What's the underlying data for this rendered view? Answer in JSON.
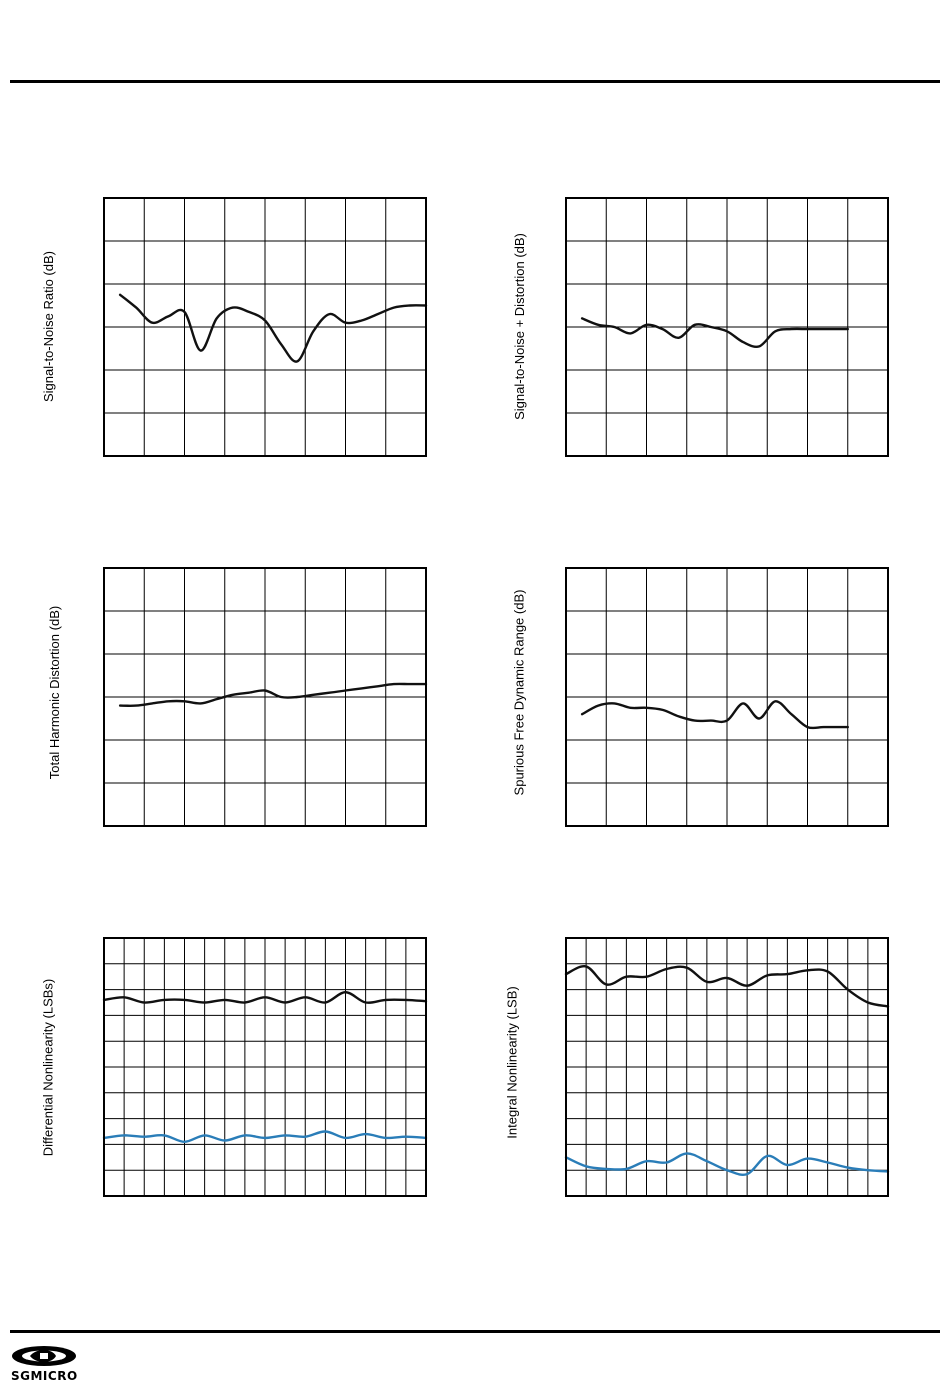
{
  "page": {
    "brand": "SGMICRO"
  },
  "colors": {
    "line": "#111111",
    "series_black": "#111111",
    "series_blue": "#2a7db8",
    "grid": "#000000"
  },
  "chart_data": [
    {
      "id": "snr",
      "type": "line",
      "ylabel": "Signal-to-Noise Ratio (dB)",
      "grid": "on",
      "xlim": [
        0,
        8
      ],
      "ylim": [
        0,
        6
      ],
      "x_divisions": 8,
      "y_divisions": 6,
      "series": [
        {
          "color": "series_black",
          "x": [
            0.4,
            0.8,
            1.2,
            1.6,
            2.0,
            2.4,
            2.8,
            3.2,
            3.6,
            4.0,
            4.4,
            4.8,
            5.2,
            5.6,
            6.0,
            6.4,
            6.8,
            7.2,
            7.6,
            8.0
          ],
          "values": [
            3.75,
            3.45,
            3.1,
            3.25,
            3.35,
            2.45,
            3.2,
            3.45,
            3.35,
            3.15,
            2.6,
            2.2,
            2.9,
            3.3,
            3.1,
            3.15,
            3.3,
            3.45,
            3.5,
            3.5
          ]
        }
      ]
    },
    {
      "id": "sinad",
      "type": "line",
      "ylabel": "Signal-to-Noise + Distortion (dB)",
      "grid": "on",
      "xlim": [
        0,
        8
      ],
      "ylim": [
        0,
        6
      ],
      "x_divisions": 8,
      "y_divisions": 6,
      "series": [
        {
          "color": "series_black",
          "x": [
            0.4,
            0.8,
            1.2,
            1.6,
            2.0,
            2.4,
            2.8,
            3.2,
            3.6,
            4.0,
            4.4,
            4.8,
            5.2,
            5.6,
            6.0,
            6.4,
            6.8,
            7.0
          ],
          "values": [
            3.2,
            3.05,
            3.0,
            2.85,
            3.05,
            2.95,
            2.75,
            3.05,
            3.0,
            2.9,
            2.65,
            2.55,
            2.9,
            2.95,
            2.95,
            2.95,
            2.95,
            2.95
          ]
        }
      ]
    },
    {
      "id": "thd",
      "type": "line",
      "ylabel": "Total Harmonic Distortion (dB)",
      "grid": "on",
      "xlim": [
        0,
        8
      ],
      "ylim": [
        0,
        6
      ],
      "x_divisions": 8,
      "y_divisions": 6,
      "series": [
        {
          "color": "series_black",
          "x": [
            0.4,
            0.8,
            1.2,
            1.6,
            2.0,
            2.4,
            2.8,
            3.2,
            3.6,
            4.0,
            4.4,
            4.8,
            5.2,
            5.6,
            6.0,
            6.4,
            6.8,
            7.2,
            7.6,
            8.0
          ],
          "values": [
            2.8,
            2.8,
            2.85,
            2.9,
            2.9,
            2.85,
            2.95,
            3.05,
            3.1,
            3.15,
            3.0,
            3.0,
            3.05,
            3.1,
            3.15,
            3.2,
            3.25,
            3.3,
            3.3,
            3.3
          ]
        }
      ]
    },
    {
      "id": "sfdr",
      "type": "line",
      "ylabel": "Spurious Free Dynamic Range (dB)",
      "grid": "on",
      "xlim": [
        0,
        8
      ],
      "ylim": [
        0,
        6
      ],
      "x_divisions": 8,
      "y_divisions": 6,
      "series": [
        {
          "color": "series_black",
          "x": [
            0.4,
            0.8,
            1.2,
            1.6,
            2.0,
            2.4,
            2.8,
            3.2,
            3.6,
            4.0,
            4.4,
            4.8,
            5.2,
            5.6,
            6.0,
            6.4,
            6.8,
            7.0
          ],
          "values": [
            2.6,
            2.8,
            2.85,
            2.75,
            2.75,
            2.7,
            2.55,
            2.45,
            2.45,
            2.45,
            2.85,
            2.5,
            2.9,
            2.6,
            2.3,
            2.3,
            2.3,
            2.3
          ]
        }
      ]
    },
    {
      "id": "dnl",
      "type": "line",
      "ylabel": "Differential Nonlinearity (LSBs)",
      "grid": "on",
      "xlim": [
        0,
        8
      ],
      "ylim": [
        0,
        10
      ],
      "x_divisions": 16,
      "y_divisions": 10,
      "series": [
        {
          "color": "series_black",
          "x": [
            0.0,
            0.5,
            1.0,
            1.5,
            2.0,
            2.5,
            3.0,
            3.5,
            4.0,
            4.5,
            5.0,
            5.5,
            6.0,
            6.5,
            7.0,
            7.5,
            8.0
          ],
          "values": [
            7.6,
            7.7,
            7.5,
            7.6,
            7.6,
            7.5,
            7.6,
            7.5,
            7.7,
            7.5,
            7.7,
            7.5,
            7.9,
            7.5,
            7.6,
            7.6,
            7.55
          ]
        },
        {
          "color": "series_blue",
          "x": [
            0.0,
            0.5,
            1.0,
            1.5,
            2.0,
            2.5,
            3.0,
            3.5,
            4.0,
            4.5,
            5.0,
            5.5,
            6.0,
            6.5,
            7.0,
            7.5,
            8.0
          ],
          "values": [
            2.25,
            2.35,
            2.3,
            2.35,
            2.1,
            2.35,
            2.15,
            2.35,
            2.25,
            2.35,
            2.3,
            2.5,
            2.25,
            2.4,
            2.25,
            2.3,
            2.25
          ]
        }
      ]
    },
    {
      "id": "inl",
      "type": "line",
      "ylabel": "Integral Nonlinearity (LSB)",
      "grid": "on",
      "xlim": [
        0,
        8
      ],
      "ylim": [
        0,
        10
      ],
      "x_divisions": 16,
      "y_divisions": 10,
      "series": [
        {
          "color": "series_black",
          "x": [
            0.0,
            0.5,
            1.0,
            1.5,
            2.0,
            2.5,
            3.0,
            3.5,
            4.0,
            4.5,
            5.0,
            5.5,
            6.0,
            6.5,
            7.0,
            7.5,
            8.0
          ],
          "values": [
            8.6,
            8.9,
            8.2,
            8.5,
            8.5,
            8.8,
            8.85,
            8.3,
            8.45,
            8.15,
            8.55,
            8.6,
            8.75,
            8.7,
            8.0,
            7.5,
            7.35
          ]
        },
        {
          "color": "series_blue",
          "x": [
            0.0,
            0.5,
            1.0,
            1.5,
            2.0,
            2.5,
            3.0,
            3.5,
            4.0,
            4.5,
            5.0,
            5.5,
            6.0,
            6.5,
            7.0,
            7.5,
            8.0
          ],
          "values": [
            1.5,
            1.15,
            1.05,
            1.05,
            1.35,
            1.3,
            1.65,
            1.35,
            1.0,
            0.85,
            1.55,
            1.2,
            1.45,
            1.3,
            1.1,
            1.0,
            0.95
          ]
        }
      ]
    }
  ]
}
